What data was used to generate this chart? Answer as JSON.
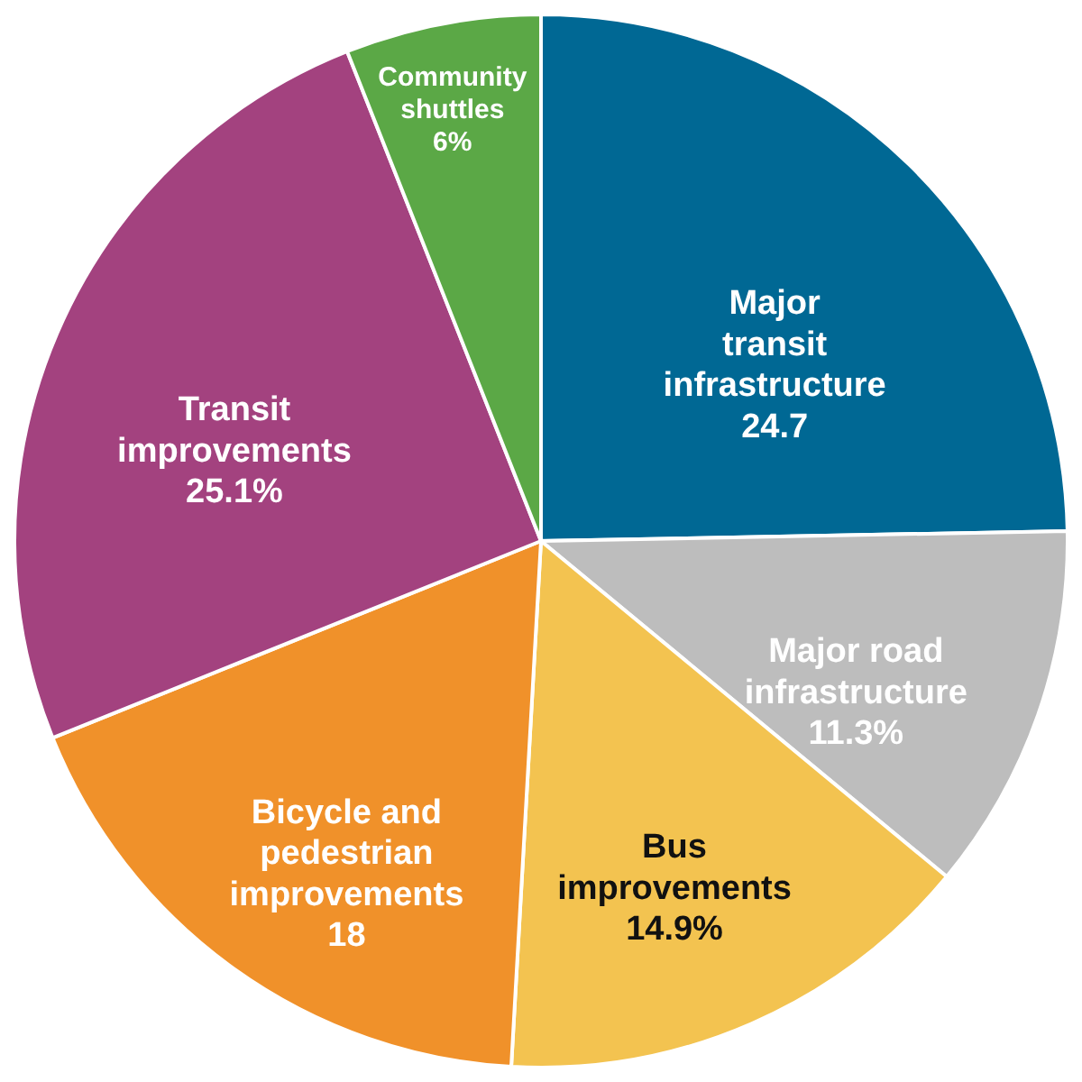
{
  "chart_data": {
    "type": "pie",
    "categories": [
      "Major\ntransit\ninfrastructure",
      "Major road\ninfrastructure",
      "Bus\nimprovements",
      "Bicycle and\npedestrian\nimprovements",
      "Transit\nimprovements",
      "Community\nshuttles"
    ],
    "values": [
      24.7,
      11.3,
      14.9,
      18,
      25.1,
      6
    ],
    "value_labels": [
      "24.7",
      "11.3%",
      "14.9%",
      "18",
      "25.1%",
      "6%"
    ],
    "colors": [
      "#006894",
      "#bdbdbd",
      "#f3c350",
      "#f0912a",
      "#a3427f",
      "#5ba846"
    ],
    "legend": false
  }
}
